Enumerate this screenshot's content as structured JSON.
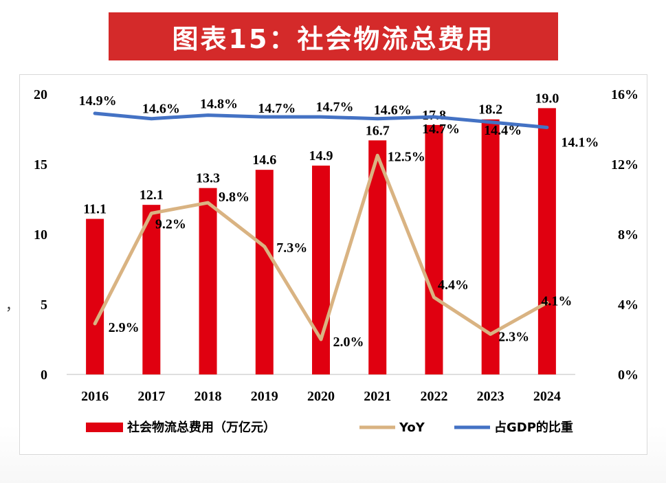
{
  "title": "图表15：社会物流总费用",
  "stray_mark": "，",
  "chart_data": {
    "type": "bar",
    "categories": [
      "2016",
      "2017",
      "2018",
      "2019",
      "2020",
      "2021",
      "2022",
      "2023",
      "2024"
    ],
    "series": [
      {
        "name": "社会物流总费用（万亿元）",
        "kind": "bar",
        "axis": "left",
        "color": "#e00010",
        "values": [
          11.1,
          12.1,
          13.3,
          14.6,
          14.9,
          16.7,
          17.8,
          18.2,
          19.0
        ],
        "labels": [
          "11.1",
          "12.1",
          "13.3",
          "14.6",
          "14.9",
          "16.7",
          "17.8",
          "18.2",
          "19.0"
        ]
      },
      {
        "name": "YoY",
        "kind": "line",
        "axis": "right",
        "color": "#d9b382",
        "values": [
          2.9,
          9.2,
          9.8,
          7.3,
          2.0,
          12.5,
          4.4,
          2.3,
          4.1
        ],
        "labels": [
          "2.9%",
          "9.2%",
          "9.8%",
          "7.3%",
          "2.0%",
          "12.5%",
          "4.4%",
          "2.3%",
          "4.1%"
        ]
      },
      {
        "name": "占GDP的比重",
        "kind": "line",
        "axis": "right",
        "color": "#4472c4",
        "values": [
          14.9,
          14.6,
          14.8,
          14.7,
          14.7,
          14.6,
          14.7,
          14.4,
          14.1
        ],
        "labels": [
          "14.9%",
          "14.6%",
          "14.8%",
          "14.7%",
          "14.7%",
          "14.6%",
          "14.7%",
          "14.4%",
          "14.1%"
        ]
      }
    ],
    "y_left": {
      "min": 0,
      "max": 20,
      "ticks": [
        "0",
        "5",
        "10",
        "15",
        "20"
      ],
      "tick_values": [
        0,
        5,
        10,
        15,
        20
      ]
    },
    "y_right": {
      "min": 0,
      "max": 16,
      "ticks": [
        "0%",
        "4%",
        "8%",
        "12%",
        "16%"
      ],
      "tick_values": [
        0,
        4,
        8,
        12,
        16
      ]
    },
    "legend": {
      "position": "bottom"
    },
    "grid": false
  }
}
